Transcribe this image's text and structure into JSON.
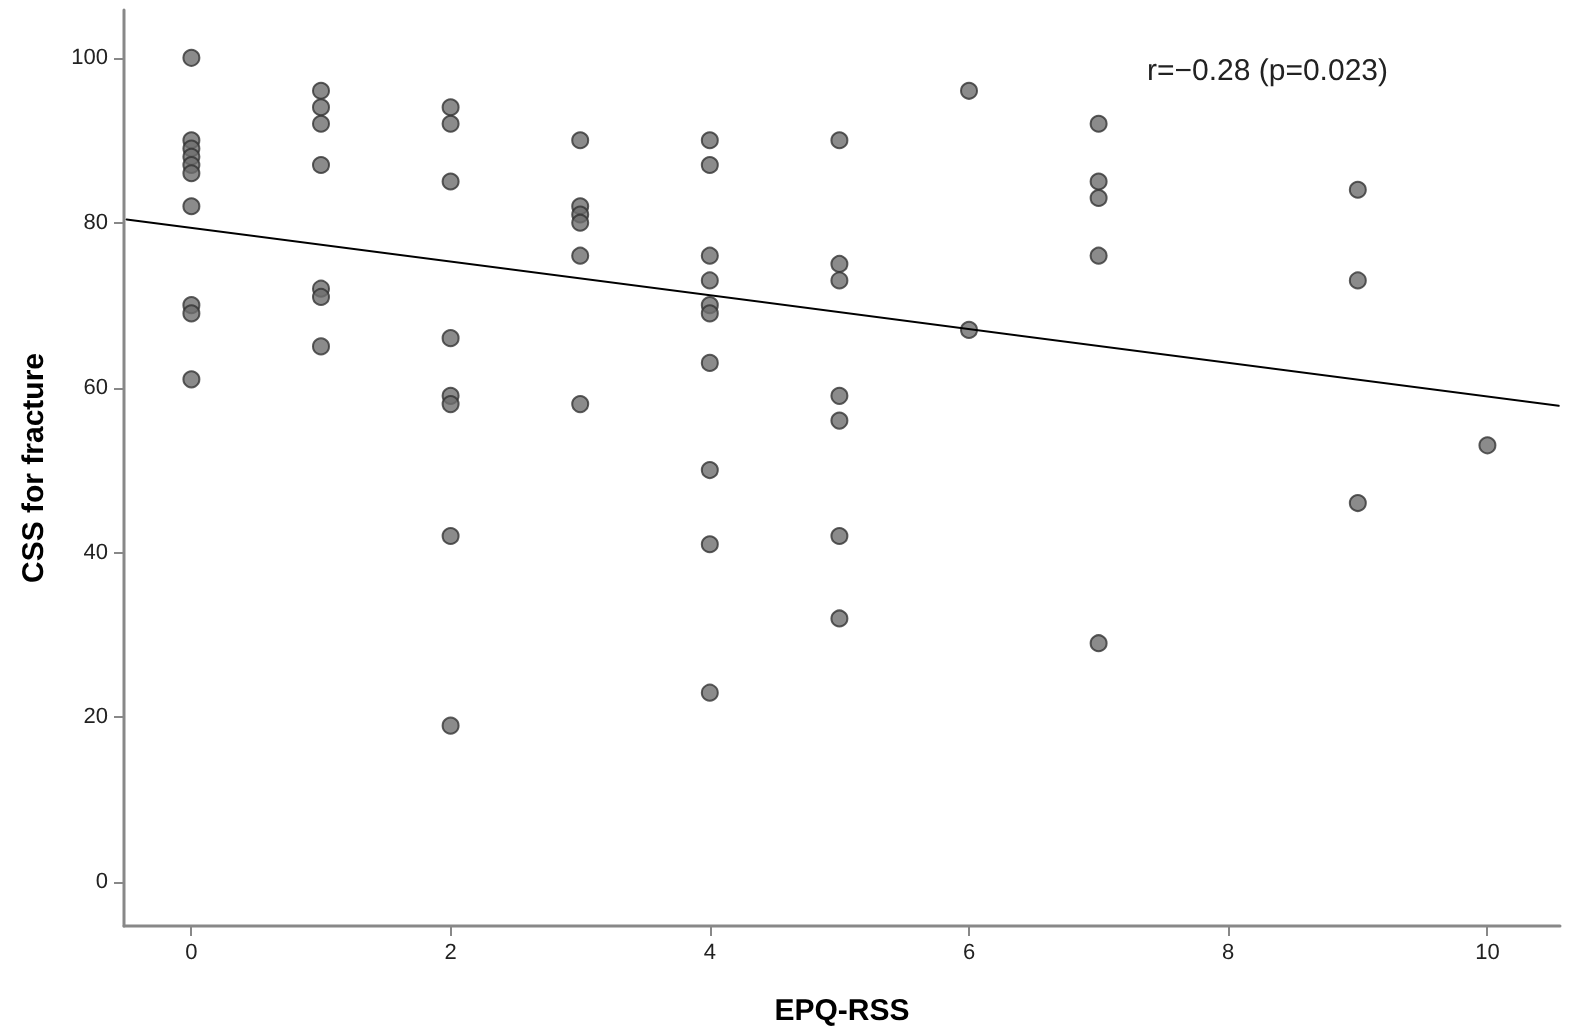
{
  "chart_data": {
    "type": "scatter",
    "xlabel": "EPQ-RSS",
    "ylabel": "CSS for fracture",
    "annotations": [
      "r=−0.28 (p=0.023)"
    ],
    "xlim": [
      -0.52,
      10.56
    ],
    "xticks": [
      0,
      2,
      4,
      6,
      8,
      10
    ],
    "ylim": [
      -5.3,
      105.8
    ],
    "yticks": [
      0,
      20,
      40,
      60,
      80,
      100
    ],
    "marker": "circle",
    "series": [
      {
        "color": "#6e6e6e",
        "x": [
          0,
          0,
          0,
          0,
          0,
          0,
          0,
          0,
          0,
          0,
          1,
          1,
          1,
          1,
          1,
          1,
          1,
          2,
          2,
          2,
          2,
          2,
          2,
          2,
          2,
          3,
          3,
          3,
          3,
          3,
          3,
          4,
          4,
          4,
          4,
          4,
          4,
          4,
          4,
          4,
          4,
          5,
          5,
          5,
          5,
          5,
          5,
          5,
          6,
          6,
          7,
          7,
          7,
          7,
          7,
          9,
          9,
          9,
          10
        ],
        "values": [
          100,
          90,
          89,
          88,
          87,
          86,
          82,
          70,
          69,
          61,
          96,
          94,
          92,
          87,
          72,
          71,
          65,
          94,
          92,
          85,
          66,
          59,
          58,
          42,
          19,
          90,
          82,
          81,
          80,
          76,
          58,
          90,
          87,
          76,
          73,
          70,
          69,
          63,
          50,
          41,
          23,
          90,
          75,
          73,
          59,
          56,
          42,
          32,
          96,
          67,
          92,
          85,
          83,
          76,
          29,
          84,
          73,
          46,
          53
        ]
      },
      {
        "type": "line",
        "color": "#000000",
        "line_style": "solid",
        "marker": "none",
        "x": [
          -0.5,
          10.55
        ],
        "values": [
          80.4,
          57.8
        ]
      }
    ]
  }
}
